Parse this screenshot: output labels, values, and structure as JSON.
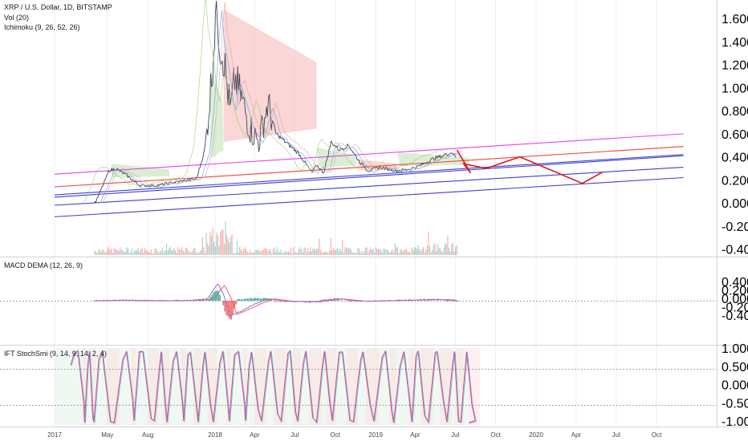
{
  "header": {
    "symbol": "XRP / U.S. Dollar, 1D, BITSTAMP",
    "vol": "Vol (20)",
    "ichimoku": "Ichimoku (9, 26, 52, 26)"
  },
  "panes": {
    "macd_title": "MACD DEMA (12, 26, 9)",
    "stoch_title": "IFT StochSmi (9, 14, 9, 14, 2, 4)"
  },
  "colors": {
    "price_line": "#434651",
    "magenta": "#e040fb",
    "red": "#f44336",
    "blue": "#3f3fd1",
    "projection": "#e0191c",
    "cloud_red": "#f8c8c8",
    "cloud_green": "#cfe8c6",
    "macd_line": "#9c6bd8",
    "signal_line": "#ef5350",
    "hist_green": "#26a69a",
    "hist_red": "#ef5350",
    "stoch_blue": "#4aa3d8",
    "stoch_pink": "#e0407a"
  },
  "chart_data": [
    {
      "type": "line",
      "title": "XRP / U.S. Dollar, 1D, BITSTAMP",
      "x_axis_ticks": [
        "2017",
        "May",
        "Aug",
        "2018",
        "Apr",
        "Jul",
        "Oct",
        "2019",
        "Apr",
        "Jul",
        "Oct",
        "2020",
        "Apr",
        "Jul",
        "Oct"
      ],
      "x_tick_dates": [
        "2017-01-01",
        "2017-05-01",
        "2017-08-01",
        "2018-01-01",
        "2018-04-01",
        "2018-07-01",
        "2018-10-01",
        "2019-01-01",
        "2019-04-01",
        "2019-07-01",
        "2019-10-01",
        "2020-01-01",
        "2020-04-01",
        "2020-07-01",
        "2020-10-01"
      ],
      "y_axis_ticks": [
        "1.60000",
        "1.40000",
        "1.20000",
        "1.00000",
        "0.80000",
        "0.60000",
        "0.40000",
        "0.20000",
        "0.00000",
        "-0.20000",
        "-0.40000"
      ],
      "ylim": [
        -0.42,
        1.72
      ],
      "series": [
        {
          "x": [
            "2017-01-01",
            "2017-03-15",
            "2017-04-05",
            "2017-05-05",
            "2017-05-20",
            "2017-06-10",
            "2017-07-15",
            "2017-08-20",
            "2017-10-01",
            "2017-11-20",
            "2017-12-10",
            "2017-12-25",
            "2018-01-04",
            "2018-01-12",
            "2018-01-20",
            "2018-02-05",
            "2018-02-15",
            "2018-03-01",
            "2018-03-20",
            "2018-04-10",
            "2018-05-01",
            "2018-05-20",
            "2018-06-10",
            "2018-07-10",
            "2018-08-10",
            "2018-08-20",
            "2018-09-05",
            "2018-09-22",
            "2018-10-10",
            "2018-11-01",
            "2018-11-25",
            "2018-12-15",
            "2019-01-10",
            "2019-02-15",
            "2019-03-15",
            "2019-04-10",
            "2019-05-10",
            "2019-05-25",
            "2019-06-10",
            "2019-06-25",
            "2019-07-05"
          ],
          "values": [
            0.006,
            0.008,
            0.03,
            0.3,
            0.32,
            0.27,
            0.17,
            0.17,
            0.2,
            0.23,
            0.5,
            1.15,
            1.8,
            1.4,
            1.3,
            0.8,
            1.1,
            0.95,
            0.68,
            0.55,
            0.88,
            0.62,
            0.55,
            0.45,
            0.28,
            0.35,
            0.28,
            0.55,
            0.48,
            0.52,
            0.38,
            0.3,
            0.33,
            0.3,
            0.31,
            0.34,
            0.4,
            0.42,
            0.44,
            0.46,
            0.4
          ]
        }
      ],
      "projection": {
        "x": [
          "2019-07-05",
          "2019-08-05",
          "2019-07-20",
          "2019-09-10",
          "2019-11-25",
          "2020-04-15",
          "2020-06-01"
        ],
        "values": [
          0.48,
          0.28,
          0.36,
          0.32,
          0.42,
          0.19,
          0.29
        ]
      },
      "trend_lines": [
        {
          "color": "magenta",
          "x": [
            "2017-01-01",
            "2020-12-01"
          ],
          "values": [
            0.27,
            0.62
          ]
        },
        {
          "color": "red",
          "x": [
            "2017-01-01",
            "2020-12-01"
          ],
          "values": [
            0.16,
            0.51
          ]
        },
        {
          "color": "blue",
          "x": [
            "2017-01-01",
            "2020-12-01"
          ],
          "values": [
            0.09,
            0.44
          ]
        },
        {
          "color": "blue",
          "x": [
            "2017-01-01",
            "2020-12-01"
          ],
          "values": [
            0.07,
            0.43
          ]
        },
        {
          "color": "blue",
          "x": [
            "2017-01-01",
            "2020-12-01"
          ],
          "values": [
            0.0,
            0.33
          ]
        },
        {
          "color": "blue",
          "x": [
            "2017-01-01",
            "2020-12-01"
          ],
          "values": [
            -0.1,
            0.24
          ]
        }
      ]
    },
    {
      "type": "line",
      "title": "MACD DEMA (12, 26, 9)",
      "y_axis_ticks": [
        "0.40000",
        "0.20000",
        "0.00000",
        "-0.20000",
        "-0.40000"
      ],
      "ylim": [
        -0.47,
        0.47
      ],
      "series": [
        {
          "x": [
            "2017-04-01",
            "2017-06-01",
            "2017-09-01",
            "2017-11-15",
            "2017-12-15",
            "2017-12-31",
            "2018-01-08",
            "2018-01-20",
            "2018-02-05",
            "2018-03-01",
            "2018-04-01",
            "2018-05-01",
            "2018-06-15",
            "2018-08-15",
            "2018-10-01",
            "2018-12-01",
            "2019-02-01",
            "2019-04-01",
            "2019-06-01",
            "2019-07-05"
          ],
          "values": [
            0.0,
            0.01,
            0.0,
            0.01,
            0.05,
            0.3,
            0.41,
            0.15,
            -0.36,
            -0.25,
            -0.08,
            0.05,
            -0.02,
            -0.03,
            0.05,
            -0.02,
            0.0,
            0.02,
            0.03,
            0.0
          ]
        }
      ]
    },
    {
      "type": "line",
      "title": "IFT StochSmi (9, 14, 9, 14, 2, 4)",
      "y_axis_ticks": [
        "1.00000",
        "0.50000",
        "0.00000",
        "-0.50000",
        "-1.00000"
      ],
      "ylim": [
        -1.12,
        1.12
      ]
    }
  ]
}
